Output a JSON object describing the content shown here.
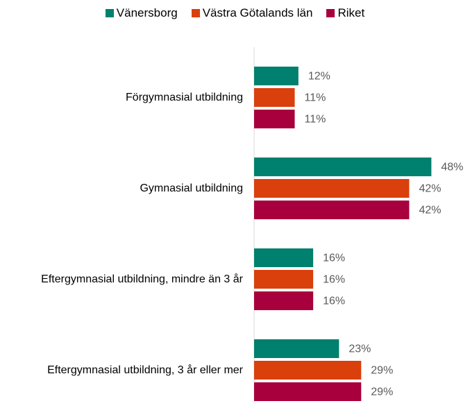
{
  "chart_data": {
    "type": "bar",
    "orientation": "horizontal",
    "categories": [
      "Förgymnasial utbildning",
      "Gymnasial utbildning",
      "Eftergymnasial utbildning, mindre än 3 år",
      "Eftergymnasial utbildning, 3 år eller mer"
    ],
    "series": [
      {
        "name": "Vänersborg",
        "color": "#00806e",
        "values": [
          12,
          48,
          16,
          23
        ],
        "value_labels": [
          "12%",
          "48%",
          "16%",
          "23%"
        ]
      },
      {
        "name": "Västra Götalands län",
        "color": "#d9400c",
        "values": [
          11,
          42,
          16,
          29
        ],
        "value_labels": [
          "11%",
          "42%",
          "16%",
          "29%"
        ]
      },
      {
        "name": "Riket",
        "color": "#a8003c",
        "values": [
          11,
          42,
          16,
          29
        ],
        "value_labels": [
          "11%",
          "42%",
          "16%",
          "29%"
        ]
      }
    ],
    "xlim": [
      0,
      50
    ],
    "legend": "top"
  }
}
